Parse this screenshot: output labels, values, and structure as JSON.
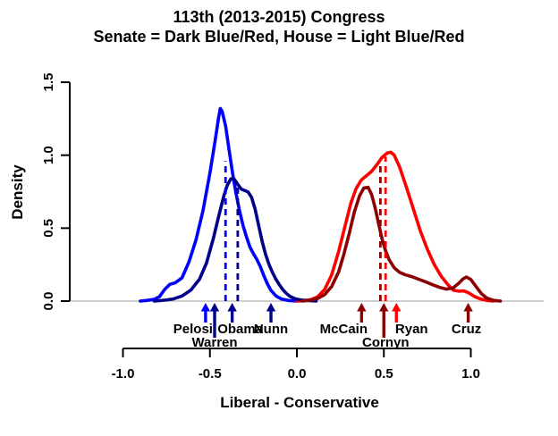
{
  "chart_data": {
    "type": "line",
    "title": "113th (2013-2015) Congress",
    "subtitle": "Senate = Dark Blue/Red, House = Light Blue/Red",
    "xlabel": "Liberal - Conservative",
    "ylabel": "Density",
    "x_ticks": [
      -1.0,
      -0.5,
      0.0,
      0.5,
      1.0
    ],
    "x_tick_labels": [
      "-1.0",
      "-0.5",
      "0.0",
      "0.5",
      "1.0"
    ],
    "y_ticks": [
      0.0,
      0.5,
      1.0,
      1.5
    ],
    "y_tick_labels": [
      "0.0",
      "0.5",
      "1.0",
      "1.5"
    ],
    "xlim": [
      -1.15,
      1.2
    ],
    "ylim": [
      0,
      1.5
    ],
    "grid": false,
    "axis_color": "#000000",
    "baseline_color": "#BFBFBF",
    "series": [
      {
        "name": "House Democrats",
        "chamber": "House",
        "party": "Democratic",
        "color": "#0000FF",
        "points": [
          [
            -0.9,
            0.0
          ],
          [
            -0.86,
            0.005
          ],
          [
            -0.82,
            0.012
          ],
          [
            -0.79,
            0.03
          ],
          [
            -0.76,
            0.08
          ],
          [
            -0.73,
            0.115
          ],
          [
            -0.7,
            0.125
          ],
          [
            -0.66,
            0.16
          ],
          [
            -0.62,
            0.27
          ],
          [
            -0.58,
            0.42
          ],
          [
            -0.54,
            0.62
          ],
          [
            -0.5,
            0.88
          ],
          [
            -0.47,
            1.1
          ],
          [
            -0.45,
            1.26
          ],
          [
            -0.44,
            1.32
          ],
          [
            -0.43,
            1.3
          ],
          [
            -0.41,
            1.2
          ],
          [
            -0.39,
            1.04
          ],
          [
            -0.37,
            0.88
          ],
          [
            -0.35,
            0.74
          ],
          [
            -0.33,
            0.62
          ],
          [
            -0.31,
            0.52
          ],
          [
            -0.29,
            0.44
          ],
          [
            -0.27,
            0.37
          ],
          [
            -0.25,
            0.325
          ],
          [
            -0.23,
            0.285
          ],
          [
            -0.21,
            0.235
          ],
          [
            -0.19,
            0.175
          ],
          [
            -0.17,
            0.12
          ],
          [
            -0.15,
            0.075
          ],
          [
            -0.12,
            0.035
          ],
          [
            -0.09,
            0.015
          ],
          [
            -0.05,
            0.004
          ],
          [
            0.0,
            0.0
          ]
        ]
      },
      {
        "name": "House Republicans",
        "chamber": "House",
        "party": "Republican",
        "color": "#FF0000",
        "points": [
          [
            0.0,
            0.0
          ],
          [
            0.04,
            0.003
          ],
          [
            0.08,
            0.01
          ],
          [
            0.12,
            0.03
          ],
          [
            0.16,
            0.08
          ],
          [
            0.2,
            0.18
          ],
          [
            0.24,
            0.34
          ],
          [
            0.28,
            0.53
          ],
          [
            0.31,
            0.67
          ],
          [
            0.34,
            0.77
          ],
          [
            0.37,
            0.83
          ],
          [
            0.4,
            0.86
          ],
          [
            0.43,
            0.89
          ],
          [
            0.46,
            0.935
          ],
          [
            0.49,
            0.985
          ],
          [
            0.52,
            1.015
          ],
          [
            0.54,
            1.02
          ],
          [
            0.56,
            1.0
          ],
          [
            0.59,
            0.92
          ],
          [
            0.63,
            0.78
          ],
          [
            0.67,
            0.63
          ],
          [
            0.71,
            0.48
          ],
          [
            0.75,
            0.355
          ],
          [
            0.79,
            0.25
          ],
          [
            0.83,
            0.17
          ],
          [
            0.87,
            0.11
          ],
          [
            0.9,
            0.075
          ],
          [
            0.93,
            0.068
          ],
          [
            0.96,
            0.07
          ],
          [
            0.99,
            0.055
          ],
          [
            1.02,
            0.032
          ],
          [
            1.06,
            0.013
          ],
          [
            1.1,
            0.003
          ],
          [
            1.13,
            0.0
          ]
        ]
      },
      {
        "name": "Senate Democrats",
        "chamber": "Senate",
        "party": "Democratic",
        "color": "#00008B",
        "points": [
          [
            -0.82,
            0.0
          ],
          [
            -0.76,
            0.006
          ],
          [
            -0.71,
            0.015
          ],
          [
            -0.66,
            0.035
          ],
          [
            -0.61,
            0.075
          ],
          [
            -0.56,
            0.15
          ],
          [
            -0.52,
            0.26
          ],
          [
            -0.48,
            0.43
          ],
          [
            -0.45,
            0.58
          ],
          [
            -0.42,
            0.72
          ],
          [
            -0.4,
            0.795
          ],
          [
            -0.38,
            0.838
          ],
          [
            -0.36,
            0.835
          ],
          [
            -0.34,
            0.8
          ],
          [
            -0.32,
            0.768
          ],
          [
            -0.3,
            0.758
          ],
          [
            -0.28,
            0.748
          ],
          [
            -0.26,
            0.71
          ],
          [
            -0.24,
            0.63
          ],
          [
            -0.22,
            0.52
          ],
          [
            -0.2,
            0.41
          ],
          [
            -0.18,
            0.32
          ],
          [
            -0.16,
            0.25
          ],
          [
            -0.14,
            0.195
          ],
          [
            -0.12,
            0.148
          ],
          [
            -0.1,
            0.11
          ],
          [
            -0.08,
            0.078
          ],
          [
            -0.06,
            0.052
          ],
          [
            -0.04,
            0.033
          ],
          [
            -0.02,
            0.021
          ],
          [
            0.0,
            0.013
          ],
          [
            0.03,
            0.007
          ],
          [
            0.07,
            0.003
          ],
          [
            0.11,
            0.0
          ]
        ]
      },
      {
        "name": "Senate Republicans",
        "chamber": "Senate",
        "party": "Republican",
        "color": "#8B0000",
        "points": [
          [
            0.03,
            0.0
          ],
          [
            0.08,
            0.006
          ],
          [
            0.12,
            0.018
          ],
          [
            0.16,
            0.045
          ],
          [
            0.2,
            0.1
          ],
          [
            0.24,
            0.2
          ],
          [
            0.27,
            0.32
          ],
          [
            0.3,
            0.46
          ],
          [
            0.33,
            0.61
          ],
          [
            0.36,
            0.72
          ],
          [
            0.385,
            0.775
          ],
          [
            0.41,
            0.78
          ],
          [
            0.43,
            0.73
          ],
          [
            0.45,
            0.64
          ],
          [
            0.47,
            0.53
          ],
          [
            0.49,
            0.425
          ],
          [
            0.51,
            0.345
          ],
          [
            0.53,
            0.285
          ],
          [
            0.56,
            0.228
          ],
          [
            0.59,
            0.197
          ],
          [
            0.62,
            0.182
          ],
          [
            0.66,
            0.168
          ],
          [
            0.7,
            0.15
          ],
          [
            0.74,
            0.132
          ],
          [
            0.78,
            0.112
          ],
          [
            0.82,
            0.094
          ],
          [
            0.86,
            0.082
          ],
          [
            0.9,
            0.092
          ],
          [
            0.93,
            0.122
          ],
          [
            0.955,
            0.152
          ],
          [
            0.975,
            0.165
          ],
          [
            1.0,
            0.148
          ],
          [
            1.03,
            0.1
          ],
          [
            1.06,
            0.052
          ],
          [
            1.09,
            0.022
          ],
          [
            1.13,
            0.005
          ],
          [
            1.17,
            0.0
          ]
        ]
      }
    ],
    "median_lines": [
      {
        "name": "house-dem-median",
        "x": -0.41,
        "color": "#0000FF",
        "height": 0.96
      },
      {
        "name": "senate-dem-median",
        "x": -0.34,
        "color": "#00008B",
        "height": 0.8
      },
      {
        "name": "senate-rep-median",
        "x": 0.48,
        "color": "#8B0000",
        "height": 0.95
      },
      {
        "name": "house-rep-median",
        "x": 0.51,
        "color": "#FF0000",
        "height": 0.99
      }
    ],
    "annotations": [
      {
        "label": "Pelosi",
        "x": -0.525,
        "color": "#0000FF",
        "row": 1,
        "label_dx": -14
      },
      {
        "label": "Warren",
        "x": -0.473,
        "color": "#00008B",
        "row": 2,
        "label_dx": 0
      },
      {
        "label": "Obama",
        "x": -0.372,
        "color": "#00008B",
        "row": 1,
        "label_dx": 9
      },
      {
        "label": "Nunn",
        "x": -0.149,
        "color": "#00008B",
        "row": 1,
        "label_dx": 0
      },
      {
        "label": "McCain",
        "x": 0.372,
        "color": "#8B0000",
        "row": 1,
        "label_dx": -20
      },
      {
        "label": "Cornyn",
        "x": 0.5,
        "color": "#8B0000",
        "row": 2,
        "label_dx": 2
      },
      {
        "label": "Ryan",
        "x": 0.572,
        "color": "#FF0000",
        "row": 1,
        "label_dx": 17
      },
      {
        "label": "Cruz",
        "x": 0.985,
        "color": "#8B0000",
        "row": 1,
        "label_dx": -2
      }
    ]
  }
}
